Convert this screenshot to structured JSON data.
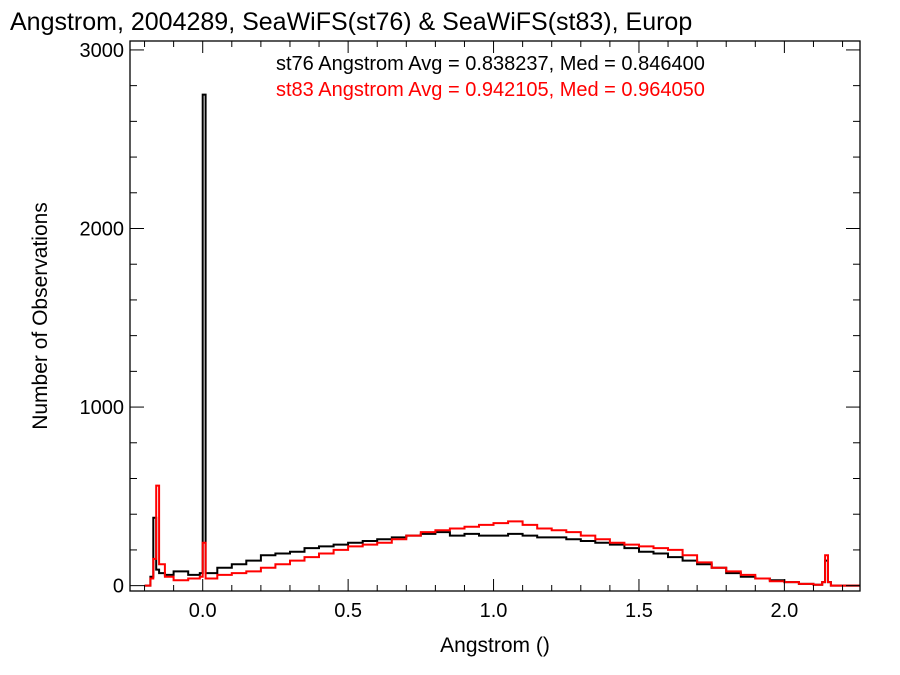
{
  "chart_data": {
    "type": "histogram-step",
    "title": "Angstrom, 2004289, SeaWiFS(st76) & SeaWiFS(st83), Europ",
    "xlabel": "Angstrom ()",
    "ylabel": "Number of Observations",
    "xlim": [
      -0.25,
      2.26
    ],
    "ylim": [
      -30,
      3050
    ],
    "xticks": [
      0.0,
      0.5,
      1.0,
      1.5,
      2.0
    ],
    "xtick_labels": [
      "0.0",
      "0.5",
      "1.0",
      "1.5",
      "2.0"
    ],
    "yticks": [
      0,
      1000,
      2000,
      3000
    ],
    "ytick_labels": [
      "0",
      "1000",
      "2000",
      "3000"
    ],
    "grid": false,
    "legend_position": "top-right",
    "series": [
      {
        "name": "st76",
        "color": "#000000",
        "legend": "st76 Angstrom Avg = 0.838237, Med = 0.846400",
        "x": [
          -0.2,
          -0.18,
          -0.17,
          -0.16,
          -0.15,
          -0.13,
          -0.1,
          -0.05,
          -0.01,
          0.0,
          0.01,
          0.05,
          0.1,
          0.15,
          0.2,
          0.25,
          0.3,
          0.35,
          0.4,
          0.45,
          0.5,
          0.55,
          0.6,
          0.65,
          0.7,
          0.75,
          0.8,
          0.85,
          0.9,
          0.95,
          1.0,
          1.05,
          1.1,
          1.15,
          1.2,
          1.25,
          1.3,
          1.35,
          1.4,
          1.45,
          1.5,
          1.55,
          1.6,
          1.65,
          1.7,
          1.75,
          1.8,
          1.85,
          1.9,
          1.95,
          2.0,
          2.05,
          2.1,
          2.13,
          2.14,
          2.15,
          2.16,
          2.2,
          2.26
        ],
        "values": [
          0,
          50,
          380,
          90,
          70,
          60,
          80,
          60,
          70,
          2750,
          70,
          100,
          120,
          140,
          170,
          180,
          190,
          210,
          220,
          230,
          240,
          250,
          260,
          270,
          280,
          290,
          300,
          280,
          290,
          280,
          280,
          290,
          280,
          270,
          270,
          260,
          250,
          240,
          230,
          210,
          190,
          180,
          160,
          140,
          120,
          100,
          70,
          50,
          40,
          30,
          20,
          10,
          5,
          20,
          140,
          20,
          0,
          0,
          0
        ]
      },
      {
        "name": "st83",
        "color": "#ff0000",
        "legend": "st83 Angstrom Avg = 0.942105, Med = 0.964050",
        "x": [
          -0.2,
          -0.18,
          -0.17,
          -0.16,
          -0.15,
          -0.13,
          -0.1,
          -0.05,
          -0.01,
          0.0,
          0.01,
          0.05,
          0.1,
          0.15,
          0.2,
          0.25,
          0.3,
          0.35,
          0.4,
          0.45,
          0.5,
          0.55,
          0.6,
          0.65,
          0.7,
          0.75,
          0.8,
          0.85,
          0.9,
          0.95,
          1.0,
          1.05,
          1.1,
          1.15,
          1.2,
          1.25,
          1.3,
          1.35,
          1.4,
          1.45,
          1.5,
          1.55,
          1.6,
          1.65,
          1.7,
          1.75,
          1.8,
          1.85,
          1.9,
          1.95,
          2.0,
          2.05,
          2.1,
          2.13,
          2.14,
          2.15,
          2.16,
          2.2,
          2.26
        ],
        "values": [
          0,
          40,
          150,
          560,
          120,
          50,
          30,
          40,
          50,
          240,
          40,
          60,
          70,
          80,
          100,
          120,
          140,
          160,
          180,
          200,
          220,
          230,
          240,
          260,
          280,
          300,
          310,
          320,
          330,
          340,
          350,
          360,
          340,
          320,
          310,
          300,
          280,
          260,
          240,
          230,
          220,
          210,
          200,
          170,
          130,
          100,
          80,
          60,
          40,
          25,
          20,
          10,
          5,
          20,
          170,
          20,
          0,
          0,
          0
        ]
      }
    ]
  }
}
